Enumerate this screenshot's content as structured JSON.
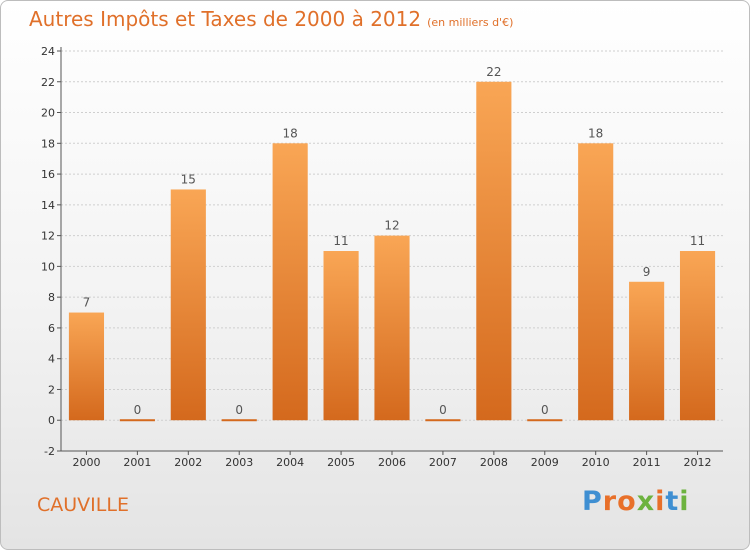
{
  "title": "Autres Impôts et Taxes de 2000 à 2012",
  "subtitle": "(en milliers d'€)",
  "location": "CAUVILLE",
  "logo": {
    "text": "Proxiti",
    "letter_colors": [
      "#3f8fd2",
      "#e8702a",
      "#e8702a",
      "#6db33f",
      "#e8702a",
      "#3f8fd2",
      "#6db33f"
    ]
  },
  "colors": {
    "bar_top": "#f9a655",
    "bar_bottom": "#d4691d",
    "title": "#e0702a",
    "grid": "#cfcfcf",
    "axis": "#555555"
  },
  "chart_data": {
    "type": "bar",
    "categories": [
      "2000",
      "2001",
      "2002",
      "2003",
      "2004",
      "2005",
      "2006",
      "2007",
      "2008",
      "2009",
      "2010",
      "2011",
      "2012"
    ],
    "values": [
      7,
      0,
      15,
      0,
      18,
      11,
      12,
      0,
      22,
      0,
      18,
      9,
      11
    ],
    "title": "Autres Impôts et Taxes de 2000 à 2012",
    "subtitle": "(en milliers d'€)",
    "xlabel": "",
    "ylabel": "",
    "ylim": [
      -2,
      24
    ],
    "yticks": [
      -2,
      0,
      2,
      4,
      6,
      8,
      10,
      12,
      14,
      16,
      18,
      20,
      22,
      24
    ],
    "grid": true,
    "legend": "none"
  }
}
